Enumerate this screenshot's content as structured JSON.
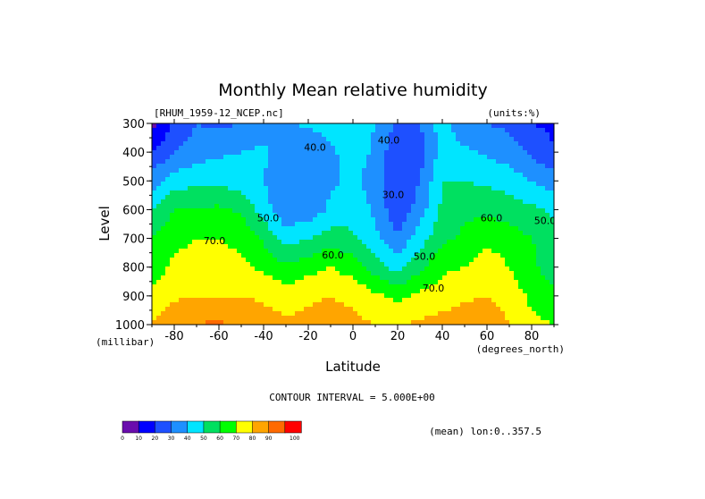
{
  "chart_data": {
    "type": "heatmap",
    "title": "Monthly Mean relative humidity",
    "dataset": "[RHUM_1959-12_NCEP.nc]",
    "units": "(units:%)",
    "xlabel": "Latitude",
    "x_units": "(degrees_north)",
    "ylabel": "Level",
    "y_units": "(millibar)",
    "xlim": [
      -90,
      90
    ],
    "ylim": [
      300,
      1000
    ],
    "y_reversed": true,
    "x_ticks": [
      -80,
      -60,
      -40,
      -20,
      0,
      20,
      40,
      60,
      80
    ],
    "y_ticks": [
      300,
      400,
      500,
      600,
      700,
      800,
      900,
      1000
    ],
    "contour_interval_text": "CONTOUR INTERVAL = 5.000E+00",
    "mean_note": "(mean) lon:0..357.5",
    "colorbar": {
      "ticks": [
        0,
        10,
        20,
        30,
        40,
        50,
        60,
        70,
        80,
        90,
        100
      ],
      "colors": [
        "#6a0dad",
        "#0000ff",
        "#1e50ff",
        "#1e90ff",
        "#00e5ff",
        "#00e060",
        "#00ff00",
        "#ffff00",
        "#ffa500",
        "#ff6a00",
        "#ff0000"
      ]
    },
    "latitudes": [
      -90,
      -80,
      -70,
      -60,
      -50,
      -40,
      -30,
      -20,
      -10,
      0,
      10,
      20,
      30,
      40,
      50,
      60,
      70,
      80,
      90
    ],
    "levels": [
      300,
      400,
      500,
      600,
      700,
      800,
      900,
      1000
    ],
    "values": [
      [
        5,
        22,
        30,
        28,
        30,
        35,
        38,
        42,
        45,
        48,
        40,
        28,
        30,
        45,
        32,
        30,
        28,
        20,
        18
      ],
      [
        20,
        30,
        35,
        38,
        40,
        42,
        32,
        30,
        38,
        45,
        38,
        22,
        25,
        45,
        42,
        38,
        35,
        28,
        20
      ],
      [
        35,
        45,
        48,
        48,
        45,
        40,
        30,
        30,
        38,
        42,
        36,
        20,
        30,
        50,
        50,
        48,
        45,
        40,
        35
      ],
      [
        50,
        60,
        60,
        62,
        58,
        45,
        32,
        33,
        42,
        46,
        38,
        22,
        35,
        52,
        58,
        58,
        55,
        52,
        48
      ],
      [
        60,
        68,
        70,
        70,
        68,
        58,
        45,
        50,
        55,
        52,
        42,
        32,
        45,
        58,
        62,
        68,
        65,
        60,
        55
      ],
      [
        65,
        72,
        73,
        73,
        72,
        68,
        62,
        66,
        70,
        65,
        55,
        45,
        58,
        68,
        70,
        75,
        70,
        62,
        55
      ],
      [
        72,
        78,
        80,
        80,
        80,
        78,
        75,
        78,
        80,
        78,
        72,
        68,
        72,
        75,
        78,
        80,
        75,
        68,
        62
      ],
      [
        80,
        88,
        90,
        92,
        88,
        85,
        82,
        84,
        84,
        82,
        80,
        78,
        82,
        84,
        86,
        88,
        80,
        72,
        70
      ]
    ],
    "contour_labels": [
      {
        "text": "40.0",
        "lat": -17,
        "level": 395
      },
      {
        "text": "40.0",
        "lat": 16,
        "level": 370
      },
      {
        "text": "30.0",
        "lat": 18,
        "level": 560
      },
      {
        "text": "50.0",
        "lat": -38,
        "level": 640
      },
      {
        "text": "70.0",
        "lat": -62,
        "level": 720
      },
      {
        "text": "60.0",
        "lat": -9,
        "level": 770
      },
      {
        "text": "50.0",
        "lat": 32,
        "level": 775
      },
      {
        "text": "70.0",
        "lat": 36,
        "level": 885
      },
      {
        "text": "60.0",
        "lat": 62,
        "level": 640
      },
      {
        "text": "50.0",
        "lat": 86,
        "level": 650
      }
    ]
  }
}
